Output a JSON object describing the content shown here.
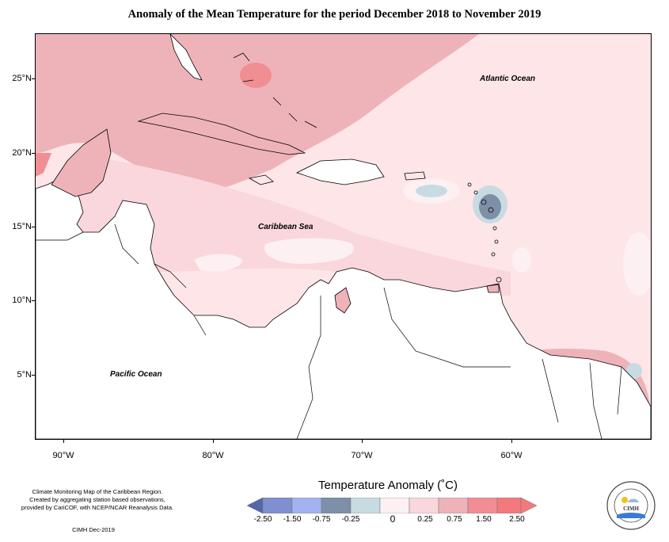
{
  "title": "Anomaly of the Mean Temperature for the period December 2018 to November 2019",
  "axes": {
    "lat_labels": [
      "25°N",
      "20°N",
      "15°N",
      "10°N",
      "5°N"
    ],
    "lon_labels": [
      "90°W",
      "80°W",
      "70°W",
      "60°W"
    ]
  },
  "map_labels": {
    "atlantic": "Atlantic Ocean",
    "caribbean": "Caribbean Sea",
    "pacific": "Pacific Ocean"
  },
  "credit": {
    "line1": "Climate Monitoring Map of the Caribbean Region.",
    "line2": "Created by aggregating station based observations,",
    "line3": "provided by CariCOF, with NCEP/NCAR Reanalysis Data.",
    "date": "CIMH Dec-2019"
  },
  "legend": {
    "title": "Temperature Anomaly (˚C)",
    "ticks": [
      "-2.50",
      "-1.50",
      "-0.75",
      "-0.25",
      "0",
      "0.25",
      "0.75",
      "1.50",
      "2.50"
    ],
    "colors": [
      "#5566aa",
      "#7f8fd0",
      "#a3b2f0",
      "#7d90a8",
      "#c9dbe2",
      "#fdf0f2",
      "#f9d7dc",
      "#eeb3b8",
      "#f08e94",
      "#f27a7e"
    ]
  },
  "logo": {
    "text": "CIMH"
  }
}
